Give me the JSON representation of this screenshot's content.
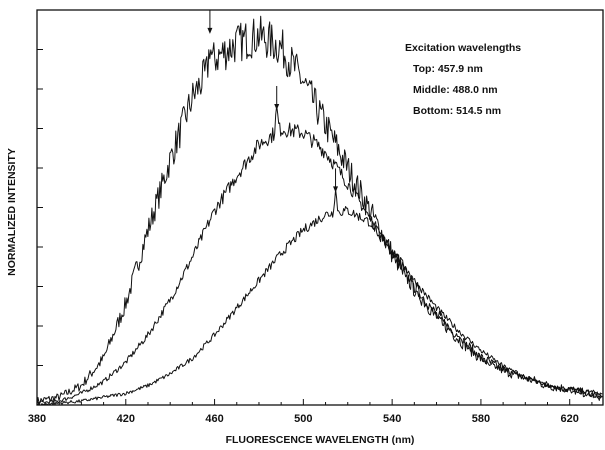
{
  "chart_data": {
    "type": "line",
    "title": "",
    "xlabel": "FLUORESCENCE WAVELENGTH (nm)",
    "ylabel": "NORMALIZED INTENSITY",
    "xlim": [
      380,
      635
    ],
    "ylim": [
      0,
      1.0
    ],
    "xticks": [
      380,
      420,
      460,
      500,
      540,
      580,
      620
    ],
    "y_tick_count": 9,
    "y_tick_labels_shown": false,
    "grid": false,
    "legend": {
      "position": "top-right",
      "title": "Excitation wavelengths",
      "entries": [
        "Top: 457.9 nm",
        "Middle: 488.0 nm",
        "Bottom: 514.5 nm"
      ]
    },
    "line_color": "#111111",
    "series": [
      {
        "excitation_nm": 457.9,
        "arrow_x": 457.9,
        "x": [
          380,
          390,
          400,
          410,
          420,
          430,
          440,
          450,
          460,
          470,
          480,
          490,
          500,
          510,
          520,
          530,
          540,
          550,
          560,
          570,
          580,
          590,
          600,
          610,
          620,
          635
        ],
        "y": [
          0.01,
          0.02,
          0.05,
          0.12,
          0.26,
          0.45,
          0.63,
          0.79,
          0.89,
          0.93,
          0.95,
          0.92,
          0.83,
          0.72,
          0.61,
          0.5,
          0.39,
          0.3,
          0.23,
          0.17,
          0.12,
          0.09,
          0.07,
          0.05,
          0.04,
          0.02
        ],
        "noise": 0.025
      },
      {
        "excitation_nm": 488.0,
        "arrow_x": 488.0,
        "x": [
          380,
          390,
          400,
          410,
          420,
          430,
          440,
          450,
          460,
          470,
          480,
          490,
          500,
          510,
          520,
          530,
          540,
          550,
          560,
          570,
          580,
          590,
          600,
          610,
          620,
          635
        ],
        "y": [
          0.005,
          0.01,
          0.03,
          0.06,
          0.11,
          0.18,
          0.27,
          0.38,
          0.5,
          0.59,
          0.67,
          0.71,
          0.7,
          0.65,
          0.57,
          0.48,
          0.39,
          0.3,
          0.23,
          0.17,
          0.12,
          0.09,
          0.07,
          0.05,
          0.04,
          0.03
        ],
        "noise": 0.012
      },
      {
        "excitation_nm": 514.5,
        "arrow_x": 514.5,
        "x": [
          380,
          390,
          400,
          410,
          420,
          430,
          440,
          450,
          460,
          470,
          480,
          490,
          500,
          510,
          520,
          530,
          540,
          550,
          560,
          570,
          580,
          590,
          600,
          610,
          620,
          635
        ],
        "y": [
          0.0,
          0.005,
          0.01,
          0.02,
          0.03,
          0.05,
          0.08,
          0.12,
          0.18,
          0.25,
          0.32,
          0.39,
          0.45,
          0.49,
          0.5,
          0.47,
          0.4,
          0.32,
          0.25,
          0.19,
          0.14,
          0.1,
          0.07,
          0.05,
          0.035,
          0.02
        ],
        "noise": 0.01
      }
    ]
  }
}
